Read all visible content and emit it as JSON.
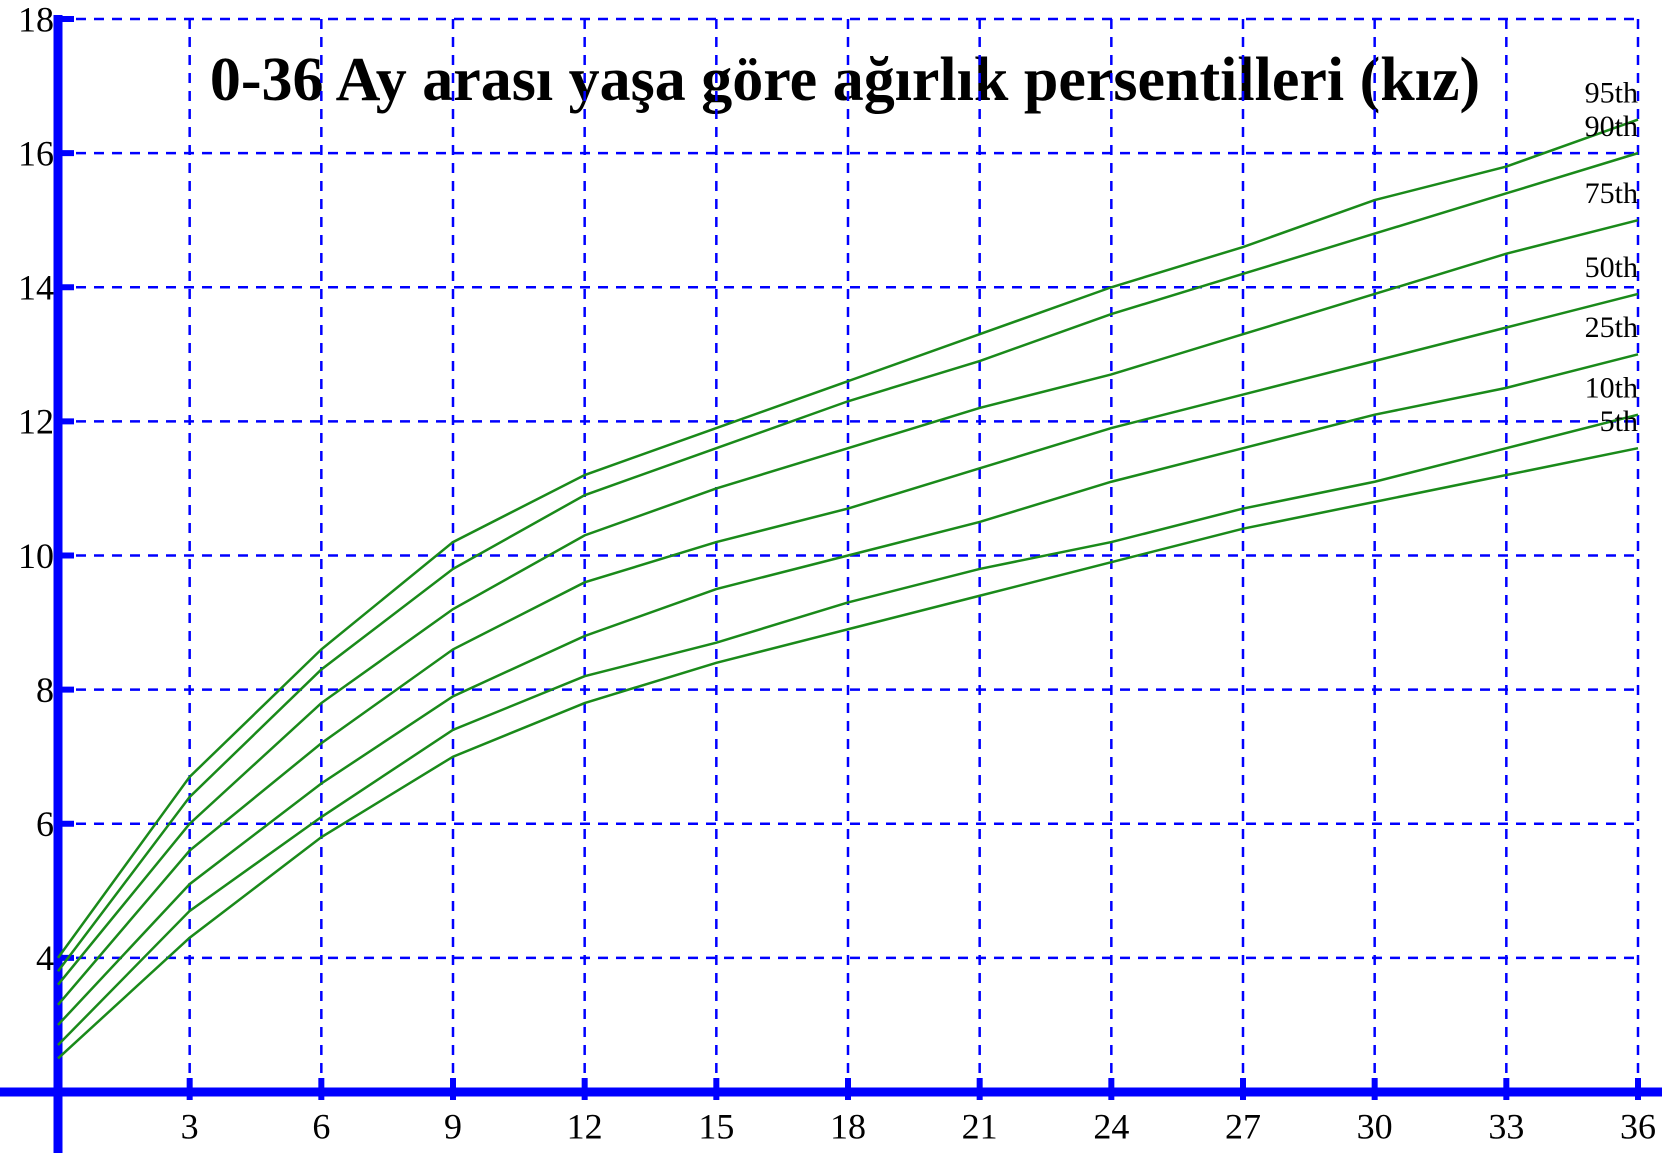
{
  "chart_data": {
    "type": "line",
    "title": "0-36 Ay arası yaşa göre ağırlık persentilleri (kız)",
    "x": [
      0,
      3,
      6,
      9,
      12,
      15,
      18,
      21,
      24,
      27,
      30,
      33,
      36
    ],
    "series": [
      {
        "name": "95th",
        "color": "#1a8a1a",
        "values": [
          4.0,
          6.7,
          8.6,
          10.2,
          11.2,
          11.9,
          12.6,
          13.3,
          14.0,
          14.6,
          15.3,
          15.8,
          16.5
        ]
      },
      {
        "name": "90th",
        "color": "#1a8a1a",
        "values": [
          3.8,
          6.4,
          8.3,
          9.8,
          10.9,
          11.6,
          12.3,
          12.9,
          13.6,
          14.2,
          14.8,
          15.4,
          16.0
        ]
      },
      {
        "name": "75th",
        "color": "#1a8a1a",
        "values": [
          3.6,
          6.0,
          7.8,
          9.2,
          10.3,
          11.0,
          11.6,
          12.2,
          12.7,
          13.3,
          13.9,
          14.5,
          15.0
        ]
      },
      {
        "name": "50th",
        "color": "#1a8a1a",
        "values": [
          3.3,
          5.6,
          7.2,
          8.6,
          9.6,
          10.2,
          10.7,
          11.3,
          11.9,
          12.4,
          12.9,
          13.4,
          13.9
        ]
      },
      {
        "name": "25th",
        "color": "#1a8a1a",
        "values": [
          3.0,
          5.1,
          6.6,
          7.9,
          8.8,
          9.5,
          10.0,
          10.5,
          11.1,
          11.6,
          12.1,
          12.5,
          13.0
        ]
      },
      {
        "name": "10th",
        "color": "#1a8a1a",
        "values": [
          2.7,
          4.7,
          6.1,
          7.4,
          8.2,
          8.7,
          9.3,
          9.8,
          10.2,
          10.7,
          11.1,
          11.6,
          12.1
        ]
      },
      {
        "name": "5th",
        "color": "#1a8a1a",
        "values": [
          2.5,
          4.3,
          5.8,
          7.0,
          7.8,
          8.4,
          8.9,
          9.4,
          9.9,
          10.4,
          10.8,
          11.2,
          11.6
        ]
      }
    ],
    "xlim": [
      0,
      36
    ],
    "xticks": [
      3,
      6,
      9,
      12,
      15,
      18,
      21,
      24,
      27,
      30,
      33,
      36
    ],
    "ylim": [
      2,
      18
    ],
    "yticks": [
      4,
      6,
      8,
      10,
      12,
      14,
      16,
      18
    ],
    "grid": true,
    "axis_color": "#0000ff"
  }
}
